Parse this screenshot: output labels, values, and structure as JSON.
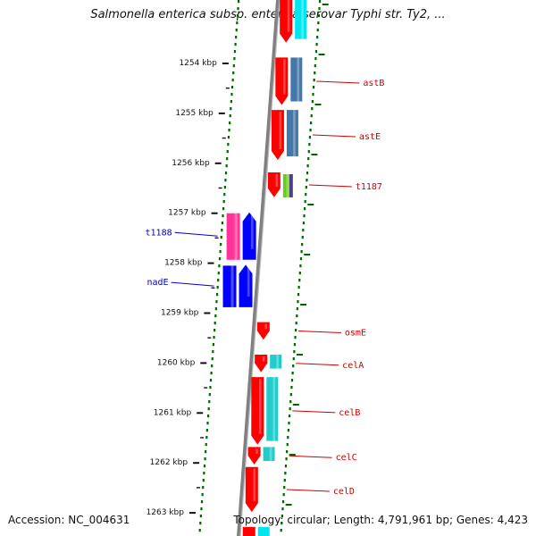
{
  "header": {
    "title": "Salmonella enterica subsp. enterica serovar Typhi str. Ty2, ..."
  },
  "footer": {
    "accession": "Accession: NC_004631",
    "topology": "Topology: circular; Length: 4,791,961 bp; Genes: 4,423"
  },
  "scale": {
    "unit": "kbp",
    "ticks": [
      {
        "label": "1254 kbp"
      },
      {
        "label": "1255 kbp"
      },
      {
        "label": "1256 kbp"
      },
      {
        "label": "1257 kbp"
      },
      {
        "label": "1258 kbp"
      },
      {
        "label": "1259 kbp"
      },
      {
        "label": "1260 kbp"
      },
      {
        "label": "1261 kbp"
      },
      {
        "label": "1262 kbp"
      },
      {
        "label": "1263 kbp"
      }
    ]
  },
  "genes": [
    {
      "name": "astB",
      "start_kbp": 1253.9,
      "end_kbp": 1254.85,
      "strand": "reverse",
      "label_color": "#cc0000"
    },
    {
      "name": "astE",
      "start_kbp": 1254.95,
      "end_kbp": 1255.95,
      "strand": "reverse",
      "label_color": "#cc0000"
    },
    {
      "name": "t1187",
      "start_kbp": 1256.2,
      "end_kbp": 1256.7,
      "strand": "reverse",
      "label_color": "#cc0000"
    },
    {
      "name": "t1188",
      "start_kbp": 1257.0,
      "end_kbp": 1257.95,
      "strand": "forward",
      "label_color": "#0000cc"
    },
    {
      "name": "nadE",
      "start_kbp": 1258.05,
      "end_kbp": 1258.9,
      "strand": "forward",
      "label_color": "#0000cc"
    },
    {
      "name": "osmE",
      "start_kbp": 1259.2,
      "end_kbp": 1259.55,
      "strand": "reverse",
      "label_color": "#cc0000"
    },
    {
      "name": "celA",
      "start_kbp": 1259.85,
      "end_kbp": 1260.2,
      "strand": "reverse",
      "label_color": "#cc0000"
    },
    {
      "name": "celB",
      "start_kbp": 1260.3,
      "end_kbp": 1261.65,
      "strand": "reverse",
      "label_color": "#cc0000"
    },
    {
      "name": "celC",
      "start_kbp": 1261.7,
      "end_kbp": 1262.05,
      "strand": "reverse",
      "label_color": "#cc0000"
    },
    {
      "name": "celD",
      "start_kbp": 1262.1,
      "end_kbp": 1263.0,
      "strand": "reverse",
      "label_color": "#cc0000"
    }
  ],
  "colors": {
    "backbone": "#808080",
    "reverse_cds": "#ff0000",
    "forward_cds": "#0000ff",
    "cog_teal": "#22cccc",
    "cog_steel": "#4477aa",
    "cog_pink": "#ff3399",
    "cog_green": "#66cc22",
    "gc_dots": "#006600"
  }
}
